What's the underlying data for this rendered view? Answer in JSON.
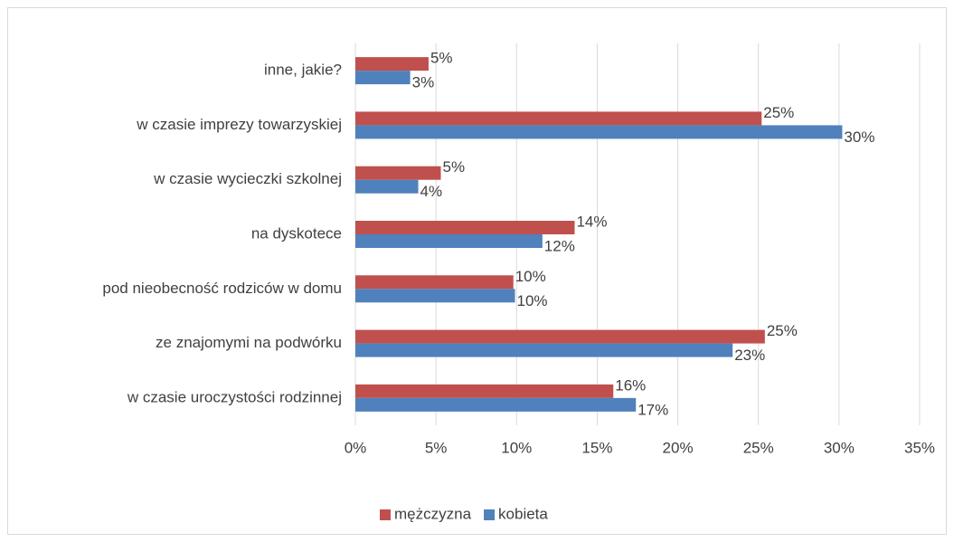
{
  "chart_data": {
    "type": "hbar",
    "categories": [
      "inne, jakie?",
      "w czasie imprezy towarzyskiej",
      "w czasie wycieczki szkolnej",
      "na dyskotece",
      "pod nieobecność rodziców w domu",
      "ze znajomymi na podwórku",
      "w czasie uroczystości rodzinnej"
    ],
    "series": [
      {
        "name": "mężczyzna",
        "color": "#c0504d",
        "values": [
          4.54,
          25.2,
          5.3,
          13.6,
          9.8,
          25.4,
          16.0
        ],
        "value_labels": [
          "5%",
          "25%",
          "5%",
          "14%",
          "10%",
          "25%",
          "16%"
        ]
      },
      {
        "name": "kobieta",
        "color": "#4f81bd",
        "values": [
          3.4,
          30.2,
          3.9,
          11.6,
          9.9,
          23.4,
          17.4
        ],
        "value_labels": [
          "3%",
          "30%",
          "4%",
          "12%",
          "10%",
          "23%",
          "17%"
        ]
      }
    ],
    "xlim": [
      0,
      35
    ],
    "xticks": [
      {
        "value": 0,
        "label": "0%"
      },
      {
        "value": 5,
        "label": "5%"
      },
      {
        "value": 10,
        "label": "10%"
      },
      {
        "value": 15,
        "label": "15%"
      },
      {
        "value": 20,
        "label": "20%"
      },
      {
        "value": 25,
        "label": "25%"
      },
      {
        "value": 30,
        "label": "30%"
      },
      {
        "value": 35,
        "label": "35%"
      }
    ],
    "grid": true,
    "legend": "bottom"
  }
}
